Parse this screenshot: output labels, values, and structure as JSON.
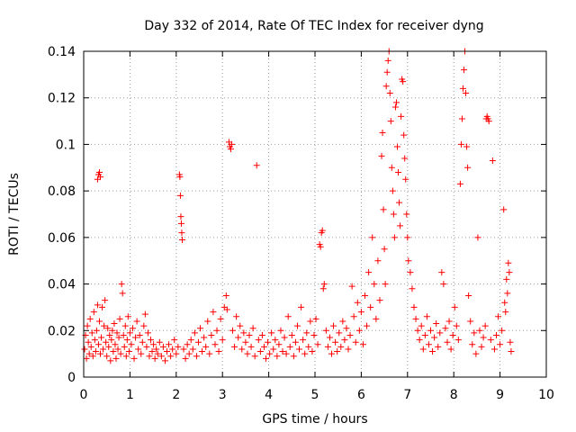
{
  "chart_data": {
    "type": "scatter",
    "title": "Day 332 of 2014, Rate Of TEC Index for receiver dyng",
    "xlabel": "GPS time / hours",
    "ylabel": "ROTI / TECUs",
    "xlim": [
      0,
      10
    ],
    "ylim": [
      0,
      0.14
    ],
    "x_ticks": [
      0,
      1,
      2,
      3,
      4,
      5,
      6,
      7,
      8,
      9,
      10
    ],
    "x_tick_labels": [
      "0",
      "1",
      "2",
      "3",
      "4",
      "5",
      "6",
      "7",
      "8",
      "9",
      "10"
    ],
    "y_ticks": [
      0,
      0.02,
      0.04,
      0.06,
      0.08,
      0.1,
      0.12,
      0.14
    ],
    "y_tick_labels": [
      "0",
      "0.02",
      "0.04",
      "0.06",
      "0.08",
      "0.1",
      "0.12",
      "0.14"
    ],
    "grid": true,
    "marker": "+",
    "color": "#ff0000",
    "series": [
      {
        "name": "ROTI",
        "points": [
          [
            0.02,
            0.012
          ],
          [
            0.04,
            0.018
          ],
          [
            0.06,
            0.008
          ],
          [
            0.08,
            0.022
          ],
          [
            0.1,
            0.015
          ],
          [
            0.12,
            0.01
          ],
          [
            0.14,
            0.025
          ],
          [
            0.16,
            0.013
          ],
          [
            0.18,
            0.019
          ],
          [
            0.2,
            0.009
          ],
          [
            0.22,
            0.028
          ],
          [
            0.24,
            0.016
          ],
          [
            0.26,
            0.011
          ],
          [
            0.28,
            0.02
          ],
          [
            0.3,
            0.031
          ],
          [
            0.32,
            0.014
          ],
          [
            0.34,
            0.024
          ],
          [
            0.36,
            0.01
          ],
          [
            0.38,
            0.017
          ],
          [
            0.4,
            0.03
          ],
          [
            0.42,
            0.012
          ],
          [
            0.44,
            0.022
          ],
          [
            0.46,
            0.033
          ],
          [
            0.48,
            0.015
          ],
          [
            0.5,
            0.009
          ],
          [
            0.52,
            0.021
          ],
          [
            0.54,
            0.013
          ],
          [
            0.56,
            0.018
          ],
          [
            0.58,
            0.007
          ],
          [
            0.6,
            0.016
          ],
          [
            0.62,
            0.02
          ],
          [
            0.64,
            0.011
          ],
          [
            0.66,
            0.023
          ],
          [
            0.68,
            0.014
          ],
          [
            0.7,
            0.008
          ],
          [
            0.72,
            0.019
          ],
          [
            0.74,
            0.012
          ],
          [
            0.76,
            0.017
          ],
          [
            0.78,
            0.025
          ],
          [
            0.8,
            0.01
          ],
          [
            0.82,
            0.04
          ],
          [
            0.84,
            0.036
          ],
          [
            0.86,
            0.018
          ],
          [
            0.88,
            0.013
          ],
          [
            0.9,
            0.022
          ],
          [
            0.92,
            0.009
          ],
          [
            0.94,
            0.016
          ],
          [
            0.96,
            0.026
          ],
          [
            0.98,
            0.011
          ],
          [
            1.0,
            0.019
          ],
          [
            1.03,
            0.014
          ],
          [
            1.06,
            0.021
          ],
          [
            1.09,
            0.008
          ],
          [
            1.12,
            0.017
          ],
          [
            1.15,
            0.024
          ],
          [
            1.18,
            0.012
          ],
          [
            1.21,
            0.018
          ],
          [
            1.24,
            0.01
          ],
          [
            1.27,
            0.015
          ],
          [
            1.3,
            0.022
          ],
          [
            1.33,
            0.027
          ],
          [
            1.36,
            0.013
          ],
          [
            1.39,
            0.019
          ],
          [
            1.42,
            0.009
          ],
          [
            1.45,
            0.016
          ],
          [
            1.48,
            0.011
          ],
          [
            1.51,
            0.014
          ],
          [
            1.54,
            0.008
          ],
          [
            1.57,
            0.012
          ],
          [
            1.6,
            0.01
          ],
          [
            1.64,
            0.015
          ],
          [
            1.68,
            0.009
          ],
          [
            1.72,
            0.013
          ],
          [
            1.76,
            0.007
          ],
          [
            1.8,
            0.011
          ],
          [
            1.84,
            0.014
          ],
          [
            1.88,
            0.009
          ],
          [
            1.92,
            0.012
          ],
          [
            1.96,
            0.016
          ],
          [
            2.0,
            0.01
          ],
          [
            2.04,
            0.013
          ],
          [
            2.07,
            0.087
          ],
          [
            2.08,
            0.086
          ],
          [
            2.09,
            0.078
          ],
          [
            2.1,
            0.069
          ],
          [
            2.11,
            0.066
          ],
          [
            2.12,
            0.062
          ],
          [
            2.13,
            0.059
          ],
          [
            2.16,
            0.012
          ],
          [
            2.2,
            0.008
          ],
          [
            2.24,
            0.014
          ],
          [
            2.28,
            0.01
          ],
          [
            2.32,
            0.016
          ],
          [
            2.36,
            0.012
          ],
          [
            2.4,
            0.019
          ],
          [
            2.44,
            0.009
          ],
          [
            2.48,
            0.015
          ],
          [
            2.52,
            0.021
          ],
          [
            2.56,
            0.011
          ],
          [
            2.6,
            0.017
          ],
          [
            2.64,
            0.013
          ],
          [
            2.68,
            0.024
          ],
          [
            2.72,
            0.01
          ],
          [
            2.76,
            0.018
          ],
          [
            2.8,
            0.028
          ],
          [
            2.84,
            0.014
          ],
          [
            2.88,
            0.02
          ],
          [
            2.92,
            0.011
          ],
          [
            2.96,
            0.025
          ],
          [
            3.0,
            0.016
          ],
          [
            3.04,
            0.03
          ],
          [
            3.08,
            0.035
          ],
          [
            3.1,
            0.029
          ],
          [
            3.14,
            0.101
          ],
          [
            3.16,
            0.099
          ],
          [
            3.18,
            0.098
          ],
          [
            3.2,
            0.1
          ],
          [
            3.22,
            0.02
          ],
          [
            3.26,
            0.013
          ],
          [
            3.3,
            0.026
          ],
          [
            3.34,
            0.017
          ],
          [
            3.38,
            0.022
          ],
          [
            3.42,
            0.012
          ],
          [
            3.46,
            0.019
          ],
          [
            3.5,
            0.015
          ],
          [
            3.54,
            0.01
          ],
          [
            3.58,
            0.018
          ],
          [
            3.62,
            0.013
          ],
          [
            3.66,
            0.021
          ],
          [
            3.7,
            0.009
          ],
          [
            3.74,
            0.091
          ],
          [
            3.78,
            0.016
          ],
          [
            3.82,
            0.011
          ],
          [
            3.86,
            0.018
          ],
          [
            3.9,
            0.013
          ],
          [
            3.94,
            0.008
          ],
          [
            3.98,
            0.015
          ],
          [
            4.02,
            0.01
          ],
          [
            4.06,
            0.019
          ],
          [
            4.1,
            0.012
          ],
          [
            4.14,
            0.016
          ],
          [
            4.18,
            0.009
          ],
          [
            4.22,
            0.014
          ],
          [
            4.26,
            0.02
          ],
          [
            4.3,
            0.011
          ],
          [
            4.34,
            0.017
          ],
          [
            4.38,
            0.01
          ],
          [
            4.42,
            0.026
          ],
          [
            4.46,
            0.013
          ],
          [
            4.5,
            0.018
          ],
          [
            4.54,
            0.009
          ],
          [
            4.58,
            0.015
          ],
          [
            4.62,
            0.022
          ],
          [
            4.66,
            0.012
          ],
          [
            4.7,
            0.03
          ],
          [
            4.74,
            0.016
          ],
          [
            4.78,
            0.01
          ],
          [
            4.82,
            0.019
          ],
          [
            4.86,
            0.013
          ],
          [
            4.9,
            0.024
          ],
          [
            4.94,
            0.011
          ],
          [
            4.98,
            0.018
          ],
          [
            5.02,
            0.025
          ],
          [
            5.06,
            0.014
          ],
          [
            5.1,
            0.057
          ],
          [
            5.12,
            0.056
          ],
          [
            5.14,
            0.062
          ],
          [
            5.16,
            0.063
          ],
          [
            5.18,
            0.038
          ],
          [
            5.2,
            0.04
          ],
          [
            5.24,
            0.02
          ],
          [
            5.28,
            0.013
          ],
          [
            5.32,
            0.017
          ],
          [
            5.36,
            0.01
          ],
          [
            5.4,
            0.022
          ],
          [
            5.44,
            0.015
          ],
          [
            5.48,
            0.011
          ],
          [
            5.52,
            0.019
          ],
          [
            5.56,
            0.013
          ],
          [
            5.6,
            0.024
          ],
          [
            5.64,
            0.016
          ],
          [
            5.68,
            0.021
          ],
          [
            5.72,
            0.012
          ],
          [
            5.76,
            0.018
          ],
          [
            5.8,
            0.039
          ],
          [
            5.84,
            0.026
          ],
          [
            5.88,
            0.015
          ],
          [
            5.92,
            0.032
          ],
          [
            5.96,
            0.02
          ],
          [
            6.0,
            0.028
          ],
          [
            6.04,
            0.014
          ],
          [
            6.08,
            0.035
          ],
          [
            6.12,
            0.022
          ],
          [
            6.16,
            0.045
          ],
          [
            6.2,
            0.03
          ],
          [
            6.24,
            0.06
          ],
          [
            6.28,
            0.04
          ],
          [
            6.32,
            0.025
          ],
          [
            6.36,
            0.05
          ],
          [
            6.4,
            0.033
          ],
          [
            6.44,
            0.095
          ],
          [
            6.46,
            0.105
          ],
          [
            6.48,
            0.072
          ],
          [
            6.5,
            0.055
          ],
          [
            6.52,
            0.04
          ],
          [
            6.54,
            0.125
          ],
          [
            6.56,
            0.131
          ],
          [
            6.58,
            0.136
          ],
          [
            6.6,
            0.14
          ],
          [
            6.62,
            0.122
          ],
          [
            6.64,
            0.11
          ],
          [
            6.66,
            0.09
          ],
          [
            6.68,
            0.08
          ],
          [
            6.7,
            0.07
          ],
          [
            6.72,
            0.06
          ],
          [
            6.74,
            0.116
          ],
          [
            6.76,
            0.118
          ],
          [
            6.78,
            0.099
          ],
          [
            6.8,
            0.088
          ],
          [
            6.82,
            0.075
          ],
          [
            6.84,
            0.065
          ],
          [
            6.86,
            0.112
          ],
          [
            6.88,
            0.128
          ],
          [
            6.9,
            0.127
          ],
          [
            6.92,
            0.104
          ],
          [
            6.94,
            0.094
          ],
          [
            6.96,
            0.085
          ],
          [
            6.98,
            0.07
          ],
          [
            7.0,
            0.06
          ],
          [
            7.02,
            0.05
          ],
          [
            7.06,
            0.045
          ],
          [
            7.1,
            0.038
          ],
          [
            7.14,
            0.03
          ],
          [
            7.18,
            0.025
          ],
          [
            7.22,
            0.02
          ],
          [
            7.26,
            0.016
          ],
          [
            7.3,
            0.022
          ],
          [
            7.34,
            0.012
          ],
          [
            7.38,
            0.018
          ],
          [
            7.42,
            0.026
          ],
          [
            7.46,
            0.014
          ],
          [
            7.5,
            0.02
          ],
          [
            7.54,
            0.011
          ],
          [
            7.58,
            0.017
          ],
          [
            7.62,
            0.023
          ],
          [
            7.66,
            0.013
          ],
          [
            7.7,
            0.019
          ],
          [
            7.74,
            0.045
          ],
          [
            7.78,
            0.04
          ],
          [
            7.82,
            0.021
          ],
          [
            7.86,
            0.015
          ],
          [
            7.9,
            0.024
          ],
          [
            7.94,
            0.012
          ],
          [
            7.98,
            0.018
          ],
          [
            8.02,
            0.03
          ],
          [
            8.06,
            0.022
          ],
          [
            8.1,
            0.016
          ],
          [
            8.14,
            0.083
          ],
          [
            8.16,
            0.1
          ],
          [
            8.18,
            0.111
          ],
          [
            8.2,
            0.124
          ],
          [
            8.22,
            0.132
          ],
          [
            8.24,
            0.14
          ],
          [
            8.26,
            0.122
          ],
          [
            8.28,
            0.099
          ],
          [
            8.3,
            0.09
          ],
          [
            8.32,
            0.035
          ],
          [
            8.36,
            0.024
          ],
          [
            8.4,
            0.014
          ],
          [
            8.44,
            0.019
          ],
          [
            8.48,
            0.01
          ],
          [
            8.52,
            0.06
          ],
          [
            8.56,
            0.02
          ],
          [
            8.6,
            0.013
          ],
          [
            8.64,
            0.017
          ],
          [
            8.68,
            0.022
          ],
          [
            8.7,
            0.111
          ],
          [
            8.72,
            0.112
          ],
          [
            8.74,
            0.111
          ],
          [
            8.76,
            0.11
          ],
          [
            8.8,
            0.016
          ],
          [
            8.84,
            0.093
          ],
          [
            8.88,
            0.012
          ],
          [
            8.92,
            0.018
          ],
          [
            8.96,
            0.026
          ],
          [
            9.0,
            0.014
          ],
          [
            9.04,
            0.02
          ],
          [
            9.08,
            0.072
          ],
          [
            9.1,
            0.032
          ],
          [
            9.12,
            0.028
          ],
          [
            9.14,
            0.042
          ],
          [
            9.16,
            0.036
          ],
          [
            9.18,
            0.049
          ],
          [
            9.2,
            0.045
          ],
          [
            9.22,
            0.015
          ],
          [
            9.24,
            0.011
          ],
          [
            0.3,
            0.085
          ],
          [
            0.32,
            0.087
          ],
          [
            0.34,
            0.088
          ],
          [
            0.36,
            0.086
          ]
        ]
      }
    ]
  }
}
